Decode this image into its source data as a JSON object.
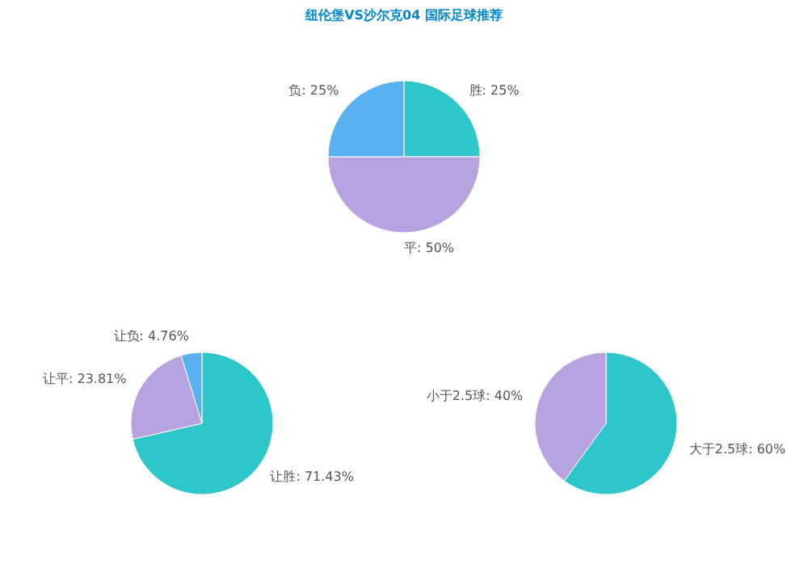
{
  "chart_data": [
    {
      "type": "pie",
      "title": "纽伦堡VS沙尔克04 国际足球推荐",
      "categories": [
        "胜",
        "平",
        "负"
      ],
      "values": [
        25,
        50,
        25
      ],
      "value_labels": [
        "25%",
        "50%",
        "25%"
      ],
      "colors": [
        "#2ec7c9",
        "#b6a2de",
        "#5ab1ef"
      ]
    },
    {
      "type": "pie",
      "categories": [
        "让胜",
        "让平",
        "让负"
      ],
      "values": [
        71.43,
        23.81,
        4.76
      ],
      "value_labels": [
        "71.43%",
        "23.81%",
        "4.76%"
      ],
      "colors": [
        "#2ec7c9",
        "#b6a2de",
        "#5ab1ef"
      ]
    },
    {
      "type": "pie",
      "categories": [
        "大于2.5球",
        "小于2.5球"
      ],
      "values": [
        60,
        40
      ],
      "value_labels": [
        "60%",
        "40%"
      ],
      "colors": [
        "#2ec7c9",
        "#b6a2de"
      ]
    }
  ]
}
